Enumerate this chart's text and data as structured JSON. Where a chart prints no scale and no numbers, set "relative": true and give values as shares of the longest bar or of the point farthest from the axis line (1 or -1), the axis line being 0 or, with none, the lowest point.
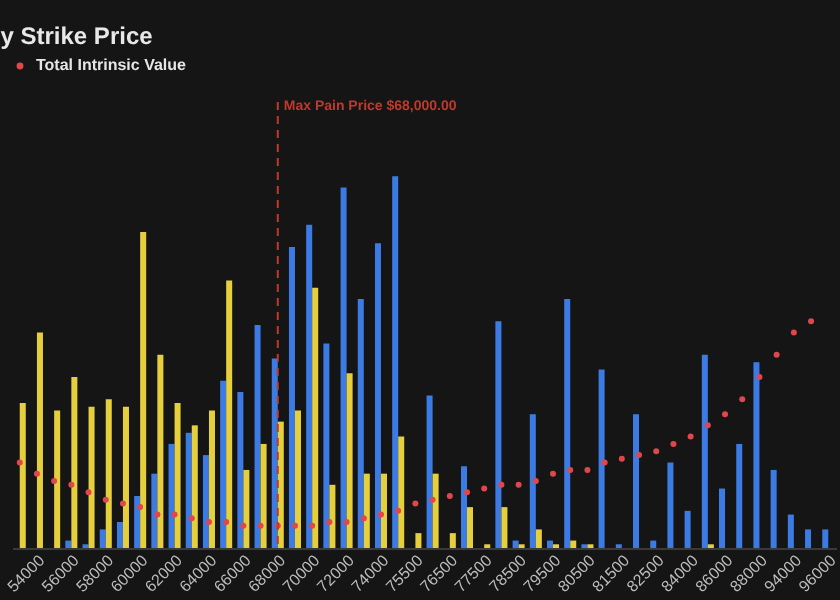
{
  "chart_data": {
    "type": "bar",
    "title": "y Strike Price",
    "relative": true,
    "legend": "top left",
    "marker": "circle",
    "categories": [
      null,
      "54000",
      null,
      "56000",
      null,
      "58000",
      null,
      "60000",
      null,
      "62000",
      null,
      "64000",
      null,
      "66000",
      null,
      "68000",
      null,
      "70000",
      null,
      "72000",
      null,
      "74000",
      null,
      "75500",
      null,
      "76500",
      null,
      "77500",
      null,
      "78500",
      null,
      "79500",
      null,
      "80500",
      null,
      "81500",
      null,
      "82500",
      null,
      "84000",
      null,
      "86000",
      null,
      "88000",
      null,
      "94000",
      null,
      "96000"
    ],
    "series": [
      {
        "type": "bar",
        "color": "#3b7be3",
        "values": [
          0,
          0,
          0,
          0.02,
          0.01,
          0.05,
          0.07,
          0.14,
          0.2,
          0.28,
          0.31,
          0.25,
          0.45,
          0.42,
          0.6,
          0.51,
          0.81,
          0.87,
          0.55,
          0.97,
          0.67,
          0.82,
          1.0,
          0,
          0.41,
          0,
          0.22,
          0,
          0.61,
          0.02,
          0.36,
          0.02,
          0.67,
          0.01,
          0.48,
          0.01,
          0.36,
          0.02,
          0.23,
          0.1,
          0.52,
          0.16,
          0.28,
          0.5,
          0.21,
          0.09,
          0.05,
          0.05
        ]
      },
      {
        "type": "bar",
        "color": "#e6cf3c",
        "values": [
          0.39,
          0.58,
          0.37,
          0.46,
          0.38,
          0.4,
          0.38,
          0.85,
          0.52,
          0.39,
          0.33,
          0.37,
          0.72,
          0.21,
          0.28,
          0.34,
          0.37,
          0.7,
          0.17,
          0.47,
          0.2,
          0.2,
          0.3,
          0.04,
          0.2,
          0.04,
          0.11,
          0.01,
          0.11,
          0.01,
          0.05,
          0.01,
          0.02,
          0.01,
          0,
          0,
          0,
          0,
          0,
          0,
          0.01,
          0,
          0,
          0,
          0,
          0,
          0,
          0
        ]
      },
      {
        "type": "scatter",
        "name": "Total Intrinsic Value",
        "color": "#e0474c",
        "values": [
          0.23,
          0.2,
          0.18,
          0.17,
          0.15,
          0.13,
          0.12,
          0.11,
          0.09,
          0.09,
          0.08,
          0.07,
          0.07,
          0.06,
          0.06,
          0.06,
          0.06,
          0.06,
          0.07,
          0.07,
          0.08,
          0.09,
          0.1,
          0.12,
          0.13,
          0.14,
          0.15,
          0.16,
          0.17,
          0.17,
          0.18,
          0.2,
          0.21,
          0.21,
          0.23,
          0.24,
          0.25,
          0.26,
          0.28,
          0.3,
          0.33,
          0.36,
          0.4,
          0.46,
          0.52,
          0.58,
          0.61,
          null
        ]
      }
    ],
    "ref_lines": [
      {
        "axis": "x",
        "value": "68000",
        "label": "Max Pain Price $68,000.00",
        "color": "#c0392b",
        "line_style": "dashed"
      }
    ]
  }
}
